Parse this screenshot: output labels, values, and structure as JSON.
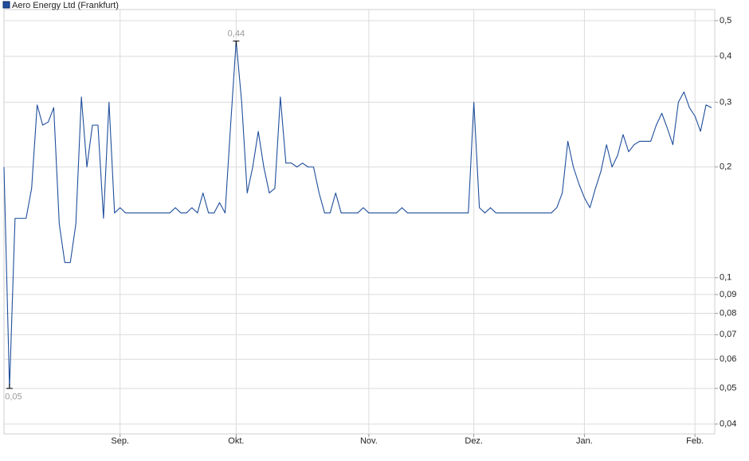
{
  "chart_data": {
    "type": "line",
    "log_scale": true,
    "grid": true,
    "legend": "top-left",
    "categories": [
      null,
      null,
      null,
      null,
      null,
      null,
      null,
      null,
      null,
      null,
      null,
      null,
      null,
      null,
      null,
      null,
      null,
      null,
      null,
      null,
      null,
      "Sep.",
      null,
      null,
      null,
      null,
      null,
      null,
      null,
      null,
      null,
      null,
      null,
      null,
      null,
      null,
      null,
      null,
      null,
      null,
      null,
      null,
      "Okt.",
      null,
      null,
      null,
      null,
      null,
      null,
      null,
      null,
      null,
      null,
      null,
      null,
      null,
      null,
      null,
      null,
      null,
      null,
      null,
      null,
      null,
      null,
      null,
      "Nov.",
      null,
      null,
      null,
      null,
      null,
      null,
      null,
      null,
      null,
      null,
      null,
      null,
      null,
      null,
      null,
      null,
      null,
      null,
      "Dez.",
      null,
      null,
      null,
      null,
      null,
      null,
      null,
      null,
      null,
      null,
      null,
      null,
      null,
      null,
      null,
      null,
      null,
      null,
      null,
      "Jan.",
      null,
      null,
      null,
      null,
      null,
      null,
      null,
      null,
      null,
      null,
      null,
      null,
      null,
      null,
      null,
      null,
      null,
      null,
      null,
      "Feb.",
      null,
      null,
      null
    ],
    "series": [
      {
        "name": "Aero Energy Ltd (Frankfurt)",
        "color": "#1f4e9c",
        "values": [
          0.2,
          0.05,
          0.145,
          0.145,
          0.145,
          0.175,
          0.295,
          0.26,
          0.265,
          0.29,
          0.14,
          0.11,
          0.11,
          0.14,
          0.31,
          0.2,
          0.26,
          0.26,
          0.145,
          0.3,
          0.15,
          0.155,
          0.15,
          0.15,
          0.15,
          0.15,
          0.15,
          0.15,
          0.15,
          0.15,
          0.15,
          0.155,
          0.15,
          0.15,
          0.155,
          0.15,
          0.17,
          0.15,
          0.15,
          0.16,
          0.15,
          0.26,
          0.44,
          0.3,
          0.17,
          0.2,
          0.25,
          0.2,
          0.17,
          0.175,
          0.31,
          0.205,
          0.205,
          0.2,
          0.205,
          0.2,
          0.2,
          0.17,
          0.15,
          0.15,
          0.17,
          0.15,
          0.15,
          0.15,
          0.15,
          0.155,
          0.15,
          0.15,
          0.15,
          0.15,
          0.15,
          0.15,
          0.155,
          0.15,
          0.15,
          0.15,
          0.15,
          0.15,
          0.15,
          0.15,
          0.15,
          0.15,
          0.15,
          0.15,
          0.15,
          0.3,
          0.155,
          0.15,
          0.155,
          0.15,
          0.15,
          0.15,
          0.15,
          0.15,
          0.15,
          0.15,
          0.15,
          0.15,
          0.15,
          0.15,
          0.155,
          0.17,
          0.235,
          0.2,
          0.18,
          0.165,
          0.155,
          0.175,
          0.195,
          0.23,
          0.2,
          0.215,
          0.245,
          0.22,
          0.23,
          0.235,
          0.235,
          0.235,
          0.26,
          0.28,
          0.255,
          0.23,
          0.3,
          0.32,
          0.29,
          0.275,
          0.25,
          0.295,
          0.29
        ],
        "value_labels": [
          null,
          "0,05",
          null,
          null,
          null,
          null,
          null,
          null,
          null,
          null,
          null,
          null,
          null,
          null,
          null,
          null,
          null,
          null,
          null,
          null,
          null,
          null,
          null,
          null,
          null,
          null,
          null,
          null,
          null,
          null,
          null,
          null,
          null,
          null,
          null,
          null,
          null,
          null,
          null,
          null,
          null,
          null,
          "0,44",
          null,
          null,
          null,
          null,
          null,
          null,
          null,
          null,
          null,
          null,
          null,
          null,
          null,
          null,
          null,
          null,
          null,
          null,
          null,
          null,
          null,
          null,
          null,
          null,
          null,
          null,
          null,
          null,
          null,
          null,
          null,
          null,
          null,
          null,
          null,
          null,
          null,
          null,
          null,
          null,
          null,
          null,
          null,
          null,
          null,
          null,
          null,
          null,
          null,
          null,
          null,
          null,
          null,
          null,
          null,
          null,
          null,
          null,
          null,
          null,
          null,
          null,
          null,
          null,
          null,
          null,
          null,
          null,
          null,
          null,
          null,
          null,
          null,
          null,
          null,
          null,
          null,
          null,
          null,
          null,
          null,
          null,
          null,
          null,
          null,
          null
        ]
      }
    ],
    "ylim": [
      0.0376,
      0.536
    ],
    "yticks": [
      {
        "value": 0.04,
        "label": "0,04"
      },
      {
        "value": 0.05,
        "label": "0,05"
      },
      {
        "value": 0.06,
        "label": "0,06"
      },
      {
        "value": 0.07,
        "label": "0,07"
      },
      {
        "value": 0.08,
        "label": "0,08"
      },
      {
        "value": 0.09,
        "label": "0,09"
      },
      {
        "value": 0.1,
        "label": "0,1"
      },
      {
        "value": 0.2,
        "label": "0,2"
      },
      {
        "value": 0.3,
        "label": "0,3"
      },
      {
        "value": 0.4,
        "label": "0,4"
      },
      {
        "value": 0.5,
        "label": "0,5"
      }
    ]
  }
}
